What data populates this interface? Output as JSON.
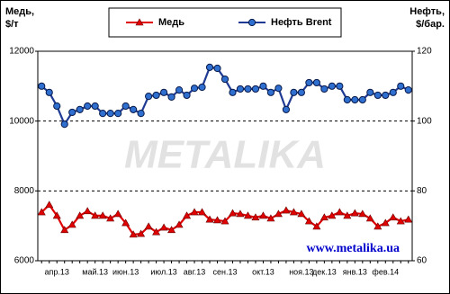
{
  "chart_data": {
    "type": "line",
    "y_label": [
      "Медь,",
      "$/т"
    ],
    "y2_label": [
      "Нефть,",
      "$/бар."
    ],
    "watermark": "METALIKA",
    "source": "www.metalika.ua",
    "categories": [
      null,
      null,
      "апр.13",
      null,
      null,
      null,
      null,
      "май.13",
      null,
      null,
      null,
      "июн.13",
      null,
      null,
      null,
      null,
      "июл.13",
      null,
      null,
      null,
      "авг.13",
      null,
      null,
      null,
      "сен.13",
      null,
      null,
      null,
      null,
      "окт.13",
      null,
      null,
      null,
      null,
      "ноя.13",
      null,
      null,
      "дек.13",
      null,
      null,
      null,
      "янв.13",
      null,
      null,
      null,
      "фев.14",
      null,
      null,
      null
    ],
    "ylim": [
      6000,
      12000
    ],
    "yticks": [
      6000,
      8000,
      10000,
      12000
    ],
    "y2lim": [
      60,
      120
    ],
    "y2ticks": [
      60,
      80,
      100,
      120
    ],
    "grid": true,
    "legend": "top",
    "series": [
      {
        "name": "Медь",
        "color": "#e00000",
        "marker": "triangle",
        "values": [
          7390,
          7600,
          7290,
          6880,
          7030,
          7290,
          7420,
          7290,
          7290,
          7210,
          7340,
          7080,
          6750,
          6770,
          6980,
          6820,
          6950,
          6880,
          7030,
          7290,
          7390,
          7390,
          7180,
          7160,
          7130,
          7360,
          7340,
          7290,
          7240,
          7290,
          7210,
          7340,
          7440,
          7390,
          7340,
          7130,
          6980,
          7240,
          7290,
          7390,
          7290,
          7360,
          7340,
          7210,
          6980,
          7080,
          7240,
          7130,
          7180
        ]
      },
      {
        "name": "Нефть Brent",
        "color": "#1f3a93",
        "marker": "circle",
        "axis": "y2",
        "values": [
          110.0,
          108.2,
          104.3,
          99.1,
          102.5,
          103.3,
          104.3,
          104.3,
          102.2,
          102.2,
          102.2,
          104.3,
          103.3,
          102.2,
          107.1,
          107.4,
          108.2,
          106.9,
          108.9,
          107.4,
          109.4,
          109.7,
          115.4,
          115.1,
          112.0,
          108.2,
          109.2,
          109.2,
          109.2,
          110.0,
          108.2,
          109.4,
          103.3,
          108.2,
          108.2,
          111.0,
          111.0,
          109.2,
          110.0,
          110.0,
          106.1,
          106.1,
          106.1,
          108.2,
          107.4,
          107.4,
          108.2,
          110.0,
          108.9
        ]
      }
    ]
  }
}
